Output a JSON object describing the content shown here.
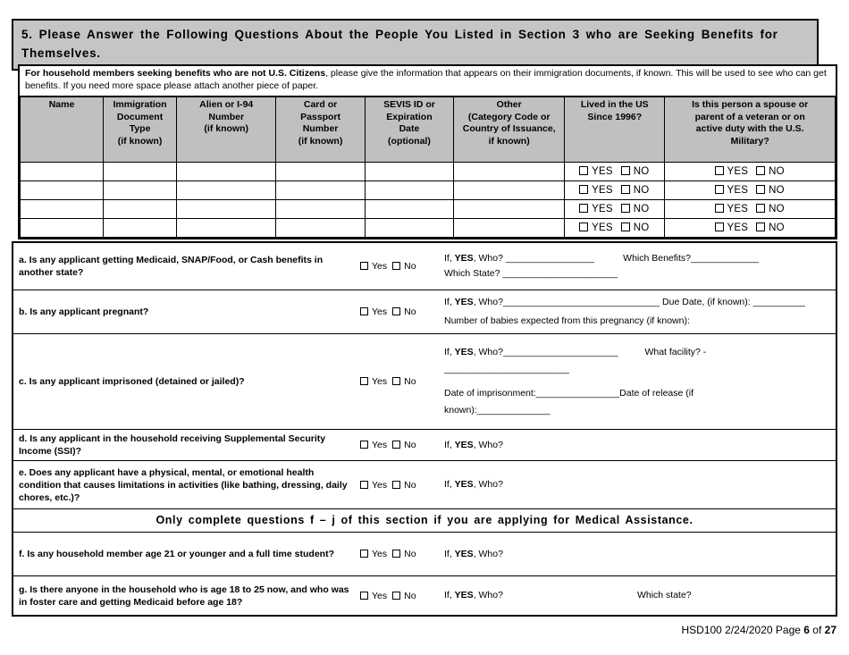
{
  "colors": {
    "title_bar_bg": "#c5c5c5",
    "table_header_bg": "#c0c0c0",
    "border": "#000000",
    "page_bg": "#ffffff"
  },
  "title": "5. Please Answer the Following Questions About the People You Listed in Section 3 who are Seeking Benefits for Themselves.",
  "intro": {
    "lead": "For household members seeking benefits who are not U.S. Citizens",
    "rest": ", please give the information that appears on their immigration documents, if known. This will be used to see who can get benefits. If you need more space please attach another piece of paper."
  },
  "immigration_table": {
    "columns": [
      "Name",
      "Immigration\nDocument\nType\n(if known)",
      "Alien or I-94\nNumber\n(if known)",
      "Card or\nPassport\nNumber\n(if known)",
      "SEVIS ID or\nExpiration\nDate\n(optional)",
      "Other\n(Category Code or\nCountry of Issuance,\nif known)",
      "Lived in the US\nSince 1996?",
      "Is this person a spouse or\nparent of a veteran or on\nactive duty with the U.S.\nMilitary?"
    ],
    "row_count": 4,
    "yes_label": "YES",
    "no_label": "NO"
  },
  "questions": {
    "yes_label": "Yes",
    "no_label": "No",
    "items": [
      {
        "id": "a",
        "text": "a. Is any applicant getting Medicaid, SNAP/Food, or Cash benefits in another state?",
        "lines": [
          [
            {
              "t": "If, "
            },
            {
              "t": "YES",
              "b": true
            },
            {
              "t": ", Who? _________________"
            },
            {
              "t": "Which Benefits?_____________",
              "gap": 32
            }
          ],
          [
            {
              "t": "Which State? ______________________"
            }
          ]
        ]
      },
      {
        "id": "b",
        "text": "b. Is any applicant pregnant?",
        "lines": [
          [
            {
              "t": "If, "
            },
            {
              "t": "YES",
              "b": true
            },
            {
              "t": ", Who?______________________________ Due Date, (if known): __________"
            }
          ],
          [
            {
              "t": "Number of babies expected from this pregnancy (if known):"
            }
          ]
        ]
      },
      {
        "id": "c",
        "text": "c. Is any applicant imprisoned (detained or jailed)?",
        "lines": [
          [
            {
              "t": "If, "
            },
            {
              "t": "YES",
              "b": true
            },
            {
              "t": ", Who?______________________"
            },
            {
              "t": "What facility? -",
              "gap": 30
            }
          ],
          [
            {
              "t": "________________________"
            }
          ],
          [
            {
              "t": "Date of imprisonment:________________"
            },
            {
              "t": "Date of release (if"
            }
          ],
          [
            {
              "t": "known):______________"
            }
          ]
        ]
      },
      {
        "id": "d",
        "text": "d. Is any applicant in the household receiving Supplemental Security Income (SSI)?",
        "lines": [
          [
            {
              "t": "If, "
            },
            {
              "t": "YES",
              "b": true
            },
            {
              "t": ", Who?"
            }
          ]
        ]
      },
      {
        "id": "e",
        "text": "e. Does any applicant have a physical, mental, or emotional health condition that causes limitations in activities (like bathing, dressing, daily chores, etc.)?",
        "lines": [
          [
            {
              "t": "If, "
            },
            {
              "t": "YES",
              "b": true
            },
            {
              "t": ", Who?"
            }
          ]
        ]
      },
      {
        "divider": "Only complete questions f – j of this section if you are applying for Medical Assistance."
      },
      {
        "id": "f",
        "text": "f. Is any household member age 21 or younger and a full time student?",
        "lines": [
          [
            {
              "t": "If, "
            },
            {
              "t": "YES",
              "b": true
            },
            {
              "t": ", Who?"
            }
          ]
        ]
      },
      {
        "id": "g",
        "text": "g. Is there anyone in the household who is age 18 to 25 now, and who was in foster care and getting Medicaid before age 18?",
        "lines": [
          [
            {
              "t": "If, "
            },
            {
              "t": "YES",
              "b": true
            },
            {
              "t": ", Who?"
            },
            {
              "t": "Which state?",
              "gap": 150
            }
          ]
        ]
      }
    ]
  },
  "footer": {
    "fragments": [
      {
        "t": "HSD100 2/24/2020 Page "
      },
      {
        "t": "6",
        "b": true
      },
      {
        "t": " of "
      },
      {
        "t": "27",
        "b": true
      }
    ]
  }
}
